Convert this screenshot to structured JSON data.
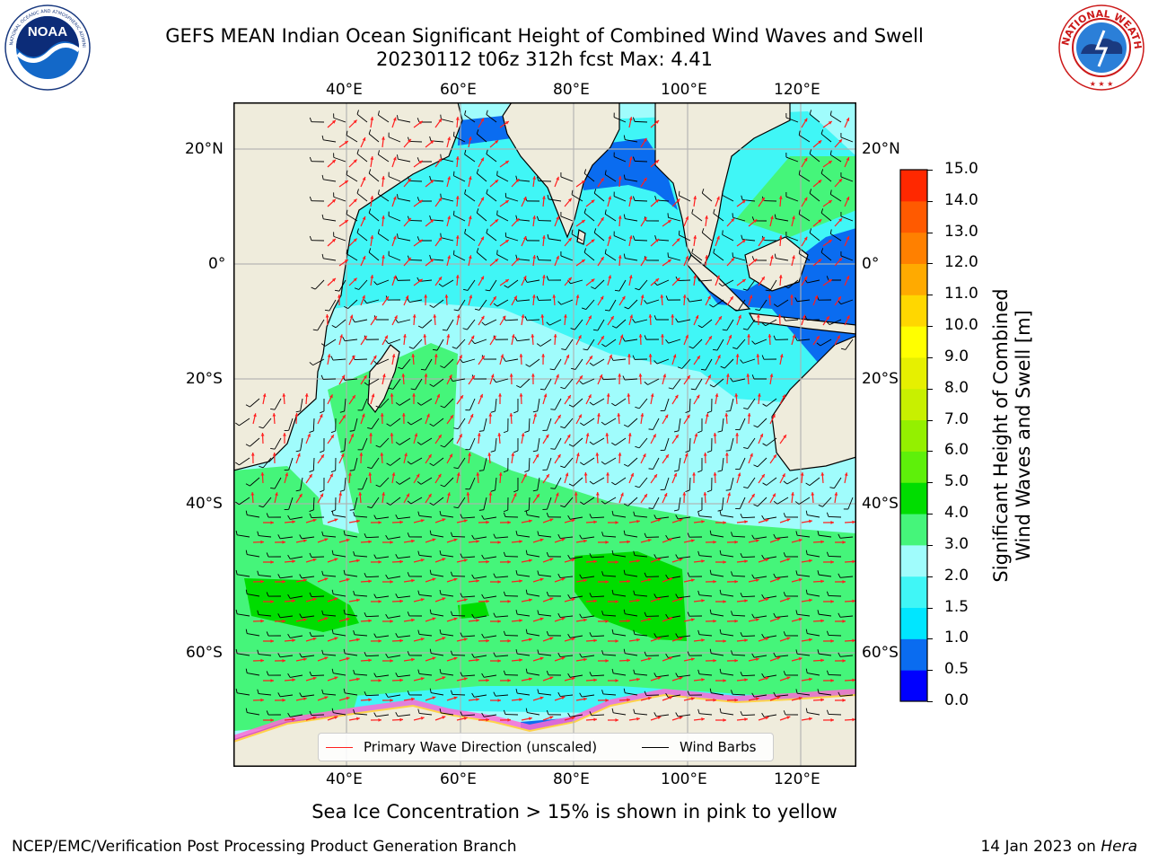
{
  "title": {
    "line1": "GEFS MEAN Indian Ocean Significant Height of Combined Wind Waves and Swell",
    "line2": "20230112 t06z 312h fcst   Max: 4.41"
  },
  "logos": {
    "left": {
      "name": "noaa-logo",
      "text": "NOAA",
      "ring_text": "NATIONAL OCEANIC AND ATMOSPHERIC ADMINISTRATION · U.S. DEPARTMENT OF COMMERCE"
    },
    "right": {
      "name": "nws-logo",
      "ring_text": "NATIONAL WEATHER SERVICE"
    }
  },
  "map": {
    "longitude_labels": [
      "40°E",
      "60°E",
      "80°E",
      "100°E",
      "120°E"
    ],
    "latitude_labels": [
      "20°N",
      "0°",
      "20°S",
      "40°S",
      "60°S"
    ],
    "colors": {
      "land": "#efecdc",
      "grid": "#b0b0b0",
      "arrow": "#ff1f1f",
      "barb": "#000000"
    }
  },
  "colorbar": {
    "ticks": [
      "0.0",
      "0.5",
      "1.0",
      "1.5",
      "2.0",
      "3.0",
      "4.0",
      "5.0",
      "6.0",
      "7.0",
      "8.0",
      "9.0",
      "10.0",
      "11.0",
      "12.0",
      "13.0",
      "14.0",
      "15.0"
    ],
    "colors": [
      "#0000ff",
      "#0a6cf0",
      "#00e6ff",
      "#40f6f6",
      "#a0fcfc",
      "#45f57a",
      "#00dd00",
      "#5ef00a",
      "#94f000",
      "#c8f000",
      "#e6f000",
      "#ffff00",
      "#ffd700",
      "#ffaa00",
      "#ff8000",
      "#ff5a00",
      "#ff2800"
    ],
    "label_line1": "Significant Height of Combined",
    "label_line2": "Wind Waves and Swell [m]"
  },
  "legend": {
    "wave_label": "Primary Wave Direction (unscaled)",
    "barb_label": "Wind Barbs"
  },
  "caption": "Sea Ice Concentration > 15% is shown in pink to yellow",
  "footer": {
    "left": "NCEP/EMC/Verification Post Processing Product Generation Branch",
    "date": "14 Jan 2023 on ",
    "host": "Hera"
  }
}
